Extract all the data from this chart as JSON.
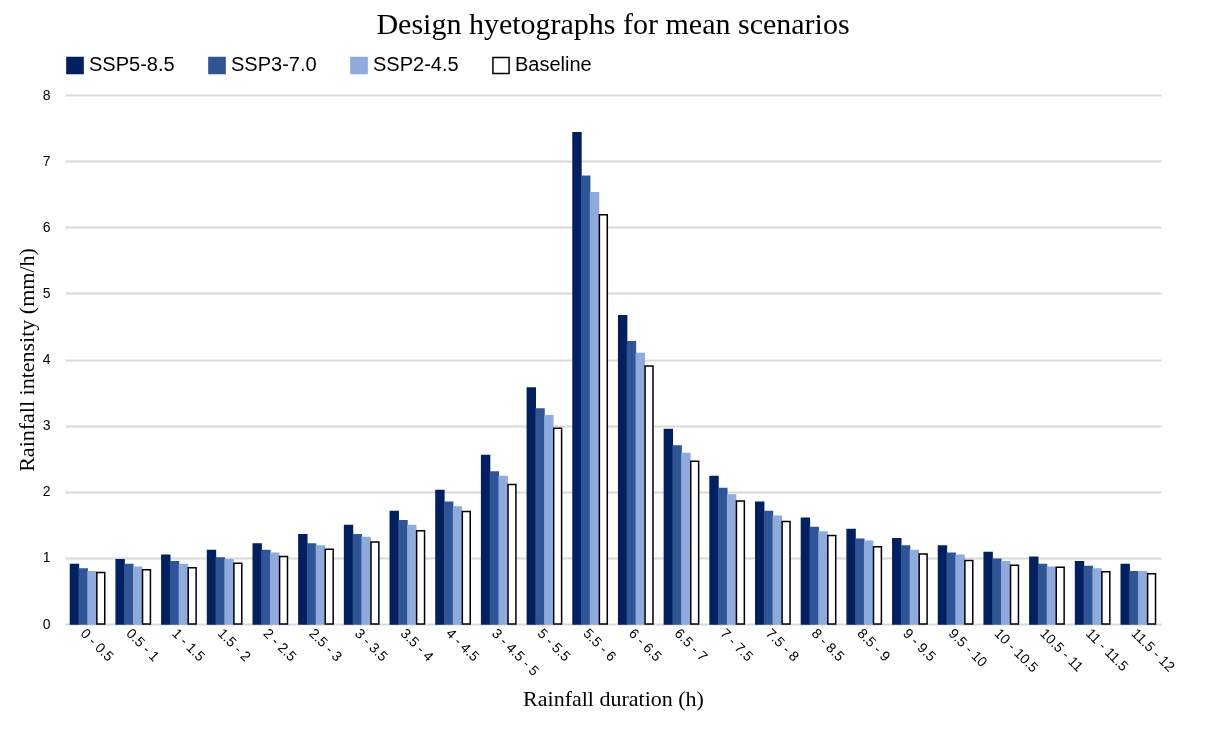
{
  "chart_data": {
    "type": "bar",
    "title": "Design hyetographs for mean scenarios",
    "xlabel": "Rainfall duration (h)",
    "ylabel": "Rainfall intensity (mm/h)",
    "categories": [
      "0 - 0.5",
      "0.5 - 1",
      "1 - 1.5",
      "1.5 - 2",
      "2 - 2.5",
      "2.5 - 3",
      "3 - 3.5",
      "3.5 - 4",
      "4 - 4.5",
      "3 - 4.5 - 5",
      "5 - 5.5",
      "5.5 - 6",
      "6 - 6.5",
      "6.5 - 7",
      "7 - 7.5",
      "7.5 - 8",
      "8 - 8.5",
      "8.5 - 9",
      "9 - 9.5",
      "9.5 - 10",
      "10 - 10.5",
      "10.5 - 11",
      "11 - 11.5",
      "11.5 - 12"
    ],
    "series": [
      {
        "name": "SSP5-8.5",
        "color": "#002060",
        "values": [
          0.9,
          0.97,
          1.04,
          1.11,
          1.21,
          1.35,
          1.49,
          1.7,
          2.02,
          2.55,
          3.57,
          7.43,
          4.66,
          2.94,
          2.23,
          1.84,
          1.6,
          1.43,
          1.29,
          1.18,
          1.08,
          1.01,
          0.94,
          0.9
        ]
      },
      {
        "name": "SSP3-7.0",
        "color": "#2f5597",
        "values": [
          0.83,
          0.9,
          0.94,
          1.0,
          1.11,
          1.21,
          1.35,
          1.56,
          1.84,
          2.3,
          3.25,
          6.77,
          4.27,
          2.69,
          2.05,
          1.7,
          1.46,
          1.28,
          1.18,
          1.07,
          0.98,
          0.9,
          0.87,
          0.79
        ]
      },
      {
        "name": "SSP2-4.5",
        "color": "#8faadc",
        "values": [
          0.79,
          0.86,
          0.9,
          0.97,
          1.07,
          1.18,
          1.31,
          1.49,
          1.77,
          2.23,
          3.15,
          6.52,
          4.09,
          2.58,
          1.95,
          1.63,
          1.39,
          1.25,
          1.11,
          1.04,
          0.94,
          0.86,
          0.83,
          0.79
        ]
      },
      {
        "name": "Baseline",
        "color": "#ffffff",
        "values": [
          0.78,
          0.82,
          0.85,
          0.92,
          1.02,
          1.13,
          1.24,
          1.41,
          1.7,
          2.11,
          2.96,
          6.19,
          3.9,
          2.46,
          1.86,
          1.55,
          1.34,
          1.17,
          1.06,
          0.96,
          0.89,
          0.86,
          0.79,
          0.76
        ]
      }
    ],
    "ylim": [
      0,
      8
    ],
    "yticks": [
      0,
      1,
      2,
      3,
      4,
      5,
      6,
      7,
      8
    ],
    "grid": "y",
    "legend": "top"
  }
}
